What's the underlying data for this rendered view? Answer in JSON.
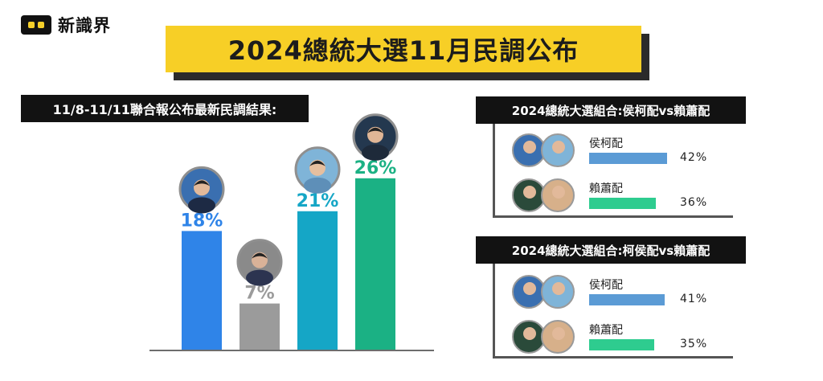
{
  "logo": {
    "text": "新識界"
  },
  "title": "2024總統大選11月民調公布",
  "left_chart_label": "11/8-11/11聯合報公布最新民調結果:",
  "chart_data": [
    {
      "type": "bar",
      "categories": [
        "",
        "",
        "",
        ""
      ],
      "values": [
        18,
        7,
        21,
        26
      ],
      "value_labels": [
        "18%",
        "7%",
        "21%",
        "26%"
      ],
      "colors": [
        "#2f84e8",
        "#9b9b9b",
        "#15a6c6",
        "#1bb184"
      ],
      "ylim": [
        0,
        30
      ],
      "title": "",
      "xlabel": "",
      "ylabel": ""
    },
    {
      "type": "bar",
      "orientation": "horizontal",
      "title": "2024總統大選組合:侯柯配vs賴蕭配",
      "categories": [
        "侯柯配",
        "賴蕭配"
      ],
      "values": [
        42,
        36
      ],
      "value_labels": [
        "42%",
        "36%"
      ],
      "colors": [
        "#5b9bd5",
        "#2ecc8f"
      ],
      "xlim": [
        0,
        100
      ]
    },
    {
      "type": "bar",
      "orientation": "horizontal",
      "title": "2024總統大選組合:柯侯配vs賴蕭配",
      "categories": [
        "侯柯配",
        "賴蕭配"
      ],
      "values": [
        41,
        35
      ],
      "value_labels": [
        "41%",
        "35%"
      ],
      "colors": [
        "#5b9bd5",
        "#2ecc8f"
      ],
      "xlim": [
        0,
        100
      ]
    }
  ]
}
